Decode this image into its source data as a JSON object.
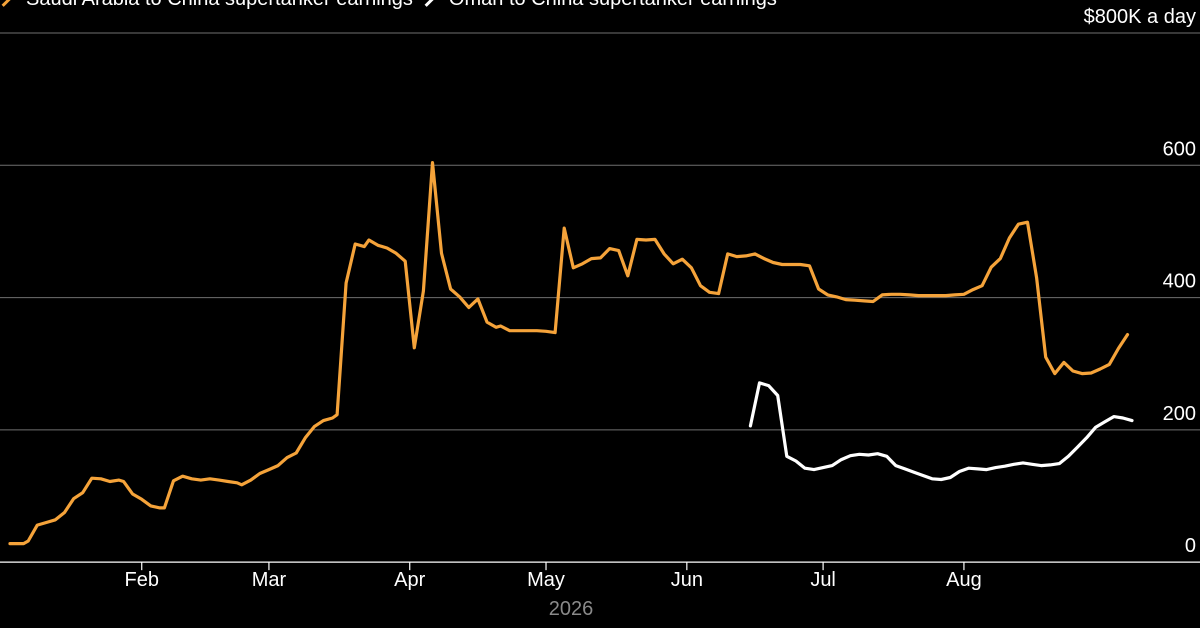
{
  "legend": [
    {
      "label": "Saudi Arabia to China supertanker earnings",
      "color": "#f5a33a"
    },
    {
      "label": "Oman to China supertanker earnings",
      "color": "#ffffff"
    }
  ],
  "chart_data": {
    "type": "line",
    "x_axis": {
      "tick_labels": [
        "Feb",
        "Mar",
        "Apr",
        "May",
        "Jun",
        "Jul",
        "Aug"
      ],
      "tick_dates": [
        "2026-02-01",
        "2026-03-01",
        "2026-04-01",
        "2026-05-01",
        "2026-06-01",
        "2026-07-01",
        "2026-08-01"
      ],
      "year_label": "2026",
      "range": [
        "2026-01-03",
        "2026-09-07"
      ]
    },
    "y_axis": {
      "ticks": [
        0,
        200,
        400,
        600,
        800
      ],
      "tick_labels": [
        "0",
        "200",
        "400",
        "600",
        "$800K a day"
      ],
      "position": "right",
      "ylim": [
        -30,
        800
      ],
      "grid": true
    },
    "series": [
      {
        "name": "Saudi Arabia to China supertanker earnings",
        "color": "#f5a33a",
        "points": [
          [
            "2026-01-03",
            28
          ],
          [
            "2026-01-06",
            28
          ],
          [
            "2026-01-07",
            32
          ],
          [
            "2026-01-09",
            56
          ],
          [
            "2026-01-11",
            60
          ],
          [
            "2026-01-13",
            64
          ],
          [
            "2026-01-15",
            75
          ],
          [
            "2026-01-17",
            96
          ],
          [
            "2026-01-19",
            105
          ],
          [
            "2026-01-21",
            127
          ],
          [
            "2026-01-23",
            126
          ],
          [
            "2026-01-25",
            122
          ],
          [
            "2026-01-27",
            124
          ],
          [
            "2026-01-28",
            122
          ],
          [
            "2026-01-30",
            103
          ],
          [
            "2026-02-01",
            95
          ],
          [
            "2026-02-03",
            85
          ],
          [
            "2026-02-05",
            82
          ],
          [
            "2026-02-06",
            82
          ],
          [
            "2026-02-08",
            123
          ],
          [
            "2026-02-10",
            130
          ],
          [
            "2026-02-12",
            126
          ],
          [
            "2026-02-14",
            124
          ],
          [
            "2026-02-16",
            126
          ],
          [
            "2026-02-18",
            124
          ],
          [
            "2026-02-20",
            122
          ],
          [
            "2026-02-22",
            120
          ],
          [
            "2026-02-23",
            117
          ],
          [
            "2026-02-25",
            124
          ],
          [
            "2026-02-27",
            134
          ],
          [
            "2026-03-01",
            140
          ],
          [
            "2026-03-03",
            146
          ],
          [
            "2026-03-05",
            158
          ],
          [
            "2026-03-07",
            165
          ],
          [
            "2026-03-09",
            188
          ],
          [
            "2026-03-11",
            205
          ],
          [
            "2026-03-13",
            214
          ],
          [
            "2026-03-15",
            218
          ],
          [
            "2026-03-16",
            223
          ],
          [
            "2026-03-18",
            422
          ],
          [
            "2026-03-20",
            481
          ],
          [
            "2026-03-22",
            477
          ],
          [
            "2026-03-23",
            487
          ],
          [
            "2026-03-25",
            479
          ],
          [
            "2026-03-27",
            475
          ],
          [
            "2026-03-29",
            467
          ],
          [
            "2026-03-31",
            455
          ],
          [
            "2026-04-02",
            324
          ],
          [
            "2026-04-04",
            410
          ],
          [
            "2026-04-06",
            604
          ],
          [
            "2026-04-08",
            467
          ],
          [
            "2026-04-10",
            413
          ],
          [
            "2026-04-12",
            401
          ],
          [
            "2026-04-14",
            385
          ],
          [
            "2026-04-16",
            398
          ],
          [
            "2026-04-18",
            363
          ],
          [
            "2026-04-20",
            355
          ],
          [
            "2026-04-21",
            357
          ],
          [
            "2026-04-23",
            350
          ],
          [
            "2026-04-25",
            350
          ],
          [
            "2026-04-27",
            350
          ],
          [
            "2026-04-29",
            350
          ],
          [
            "2026-05-01",
            349
          ],
          [
            "2026-05-03",
            347
          ],
          [
            "2026-05-05",
            505
          ],
          [
            "2026-05-07",
            445
          ],
          [
            "2026-05-09",
            451
          ],
          [
            "2026-05-11",
            459
          ],
          [
            "2026-05-13",
            460
          ],
          [
            "2026-05-15",
            474
          ],
          [
            "2026-05-17",
            471
          ],
          [
            "2026-05-19",
            433
          ],
          [
            "2026-05-21",
            488
          ],
          [
            "2026-05-23",
            487
          ],
          [
            "2026-05-25",
            488
          ],
          [
            "2026-05-27",
            466
          ],
          [
            "2026-05-29",
            451
          ],
          [
            "2026-05-31",
            458
          ],
          [
            "2026-06-02",
            445
          ],
          [
            "2026-06-04",
            418
          ],
          [
            "2026-06-06",
            408
          ],
          [
            "2026-06-08",
            406
          ],
          [
            "2026-06-10",
            466
          ],
          [
            "2026-06-12",
            462
          ],
          [
            "2026-06-14",
            463
          ],
          [
            "2026-06-16",
            466
          ],
          [
            "2026-06-18",
            459
          ],
          [
            "2026-06-20",
            453
          ],
          [
            "2026-06-22",
            450
          ],
          [
            "2026-06-24",
            450
          ],
          [
            "2026-06-26",
            450
          ],
          [
            "2026-06-28",
            448
          ],
          [
            "2026-06-30",
            413
          ],
          [
            "2026-07-02",
            404
          ],
          [
            "2026-07-04",
            401
          ],
          [
            "2026-07-06",
            397
          ],
          [
            "2026-07-08",
            396
          ],
          [
            "2026-07-10",
            395
          ],
          [
            "2026-07-12",
            394
          ],
          [
            "2026-07-14",
            404
          ],
          [
            "2026-07-16",
            405
          ],
          [
            "2026-07-18",
            405
          ],
          [
            "2026-07-20",
            404
          ],
          [
            "2026-07-22",
            403
          ],
          [
            "2026-07-24",
            403
          ],
          [
            "2026-07-26",
            403
          ],
          [
            "2026-07-28",
            403
          ],
          [
            "2026-07-30",
            404
          ],
          [
            "2026-08-01",
            405
          ],
          [
            "2026-08-03",
            412
          ],
          [
            "2026-08-05",
            418
          ],
          [
            "2026-08-07",
            446
          ],
          [
            "2026-08-09",
            459
          ],
          [
            "2026-08-11",
            490
          ],
          [
            "2026-08-13",
            511
          ],
          [
            "2026-08-15",
            514
          ],
          [
            "2026-08-17",
            430
          ],
          [
            "2026-08-19",
            310
          ],
          [
            "2026-08-21",
            285
          ],
          [
            "2026-08-23",
            302
          ],
          [
            "2026-08-25",
            289
          ],
          [
            "2026-08-27",
            285
          ],
          [
            "2026-08-29",
            286
          ],
          [
            "2026-08-31",
            292
          ],
          [
            "2026-09-02",
            299
          ],
          [
            "2026-09-04",
            323
          ],
          [
            "2026-09-06",
            344
          ]
        ]
      },
      {
        "name": "Oman to China supertanker earnings",
        "color": "#ffffff",
        "points": [
          [
            "2026-06-15",
            206
          ],
          [
            "2026-06-17",
            271
          ],
          [
            "2026-06-19",
            267
          ],
          [
            "2026-06-21",
            252
          ],
          [
            "2026-06-23",
            160
          ],
          [
            "2026-06-25",
            153
          ],
          [
            "2026-06-27",
            142
          ],
          [
            "2026-06-29",
            140
          ],
          [
            "2026-07-01",
            143
          ],
          [
            "2026-07-03",
            146
          ],
          [
            "2026-07-05",
            155
          ],
          [
            "2026-07-07",
            161
          ],
          [
            "2026-07-09",
            163
          ],
          [
            "2026-07-11",
            162
          ],
          [
            "2026-07-13",
            164
          ],
          [
            "2026-07-15",
            160
          ],
          [
            "2026-07-17",
            146
          ],
          [
            "2026-07-19",
            141
          ],
          [
            "2026-07-21",
            136
          ],
          [
            "2026-07-23",
            131
          ],
          [
            "2026-07-25",
            126
          ],
          [
            "2026-07-27",
            125
          ],
          [
            "2026-07-29",
            128
          ],
          [
            "2026-07-31",
            137
          ],
          [
            "2026-08-02",
            142
          ],
          [
            "2026-08-04",
            141
          ],
          [
            "2026-08-06",
            140
          ],
          [
            "2026-08-08",
            143
          ],
          [
            "2026-08-10",
            145
          ],
          [
            "2026-08-12",
            148
          ],
          [
            "2026-08-14",
            150
          ],
          [
            "2026-08-16",
            148
          ],
          [
            "2026-08-18",
            146
          ],
          [
            "2026-08-20",
            147
          ],
          [
            "2026-08-22",
            149
          ],
          [
            "2026-08-24",
            160
          ],
          [
            "2026-08-26",
            174
          ],
          [
            "2026-08-28",
            188
          ],
          [
            "2026-08-30",
            204
          ],
          [
            "2026-09-01",
            212
          ],
          [
            "2026-09-03",
            220
          ],
          [
            "2026-09-05",
            218
          ],
          [
            "2026-09-07",
            214
          ]
        ]
      }
    ]
  }
}
